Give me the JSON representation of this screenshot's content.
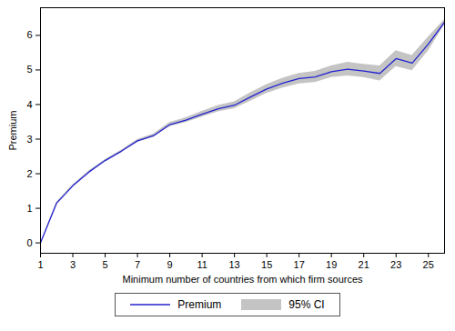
{
  "chart_data": {
    "type": "line",
    "x_label": "Minimum number of countries from which firm sources",
    "y_label": "Premium",
    "x": [
      1,
      2,
      3,
      4,
      5,
      6,
      7,
      8,
      9,
      10,
      11,
      12,
      13,
      14,
      15,
      16,
      17,
      18,
      19,
      20,
      21,
      22,
      23,
      24,
      25,
      26
    ],
    "series": [
      {
        "name": "Premium",
        "color": "#2323cf",
        "values": [
          0,
          1.15,
          1.65,
          2.05,
          2.38,
          2.65,
          2.95,
          3.1,
          3.42,
          3.55,
          3.72,
          3.88,
          3.98,
          4.22,
          4.45,
          4.62,
          4.75,
          4.8,
          4.95,
          5.02,
          4.97,
          4.9,
          5.33,
          5.2,
          5.75,
          6.38
        ]
      }
    ],
    "ci": {
      "name": "95% CI",
      "color": "#c4c4c4",
      "lower": [
        0,
        1.12,
        1.62,
        2.02,
        2.35,
        2.62,
        2.91,
        3.05,
        3.36,
        3.48,
        3.64,
        3.79,
        3.88,
        4.1,
        4.32,
        4.48,
        4.6,
        4.64,
        4.78,
        4.83,
        4.78,
        4.68,
        5.1,
        4.98,
        5.55,
        6.3
      ],
      "upper": [
        0,
        1.18,
        1.68,
        2.08,
        2.41,
        2.68,
        2.99,
        3.15,
        3.48,
        3.62,
        3.8,
        3.97,
        4.08,
        4.34,
        4.58,
        4.76,
        4.9,
        4.96,
        5.12,
        5.22,
        5.16,
        5.12,
        5.56,
        5.42,
        5.95,
        6.46
      ]
    },
    "xlim": [
      1,
      26
    ],
    "xticks": [
      1,
      3,
      5,
      7,
      9,
      11,
      13,
      15,
      17,
      19,
      21,
      23,
      25
    ],
    "ylim": [
      -0.3,
      6.8
    ],
    "yticks": [
      0,
      1,
      2,
      3,
      4,
      5,
      6
    ],
    "grid": false,
    "legend": "bottom"
  }
}
